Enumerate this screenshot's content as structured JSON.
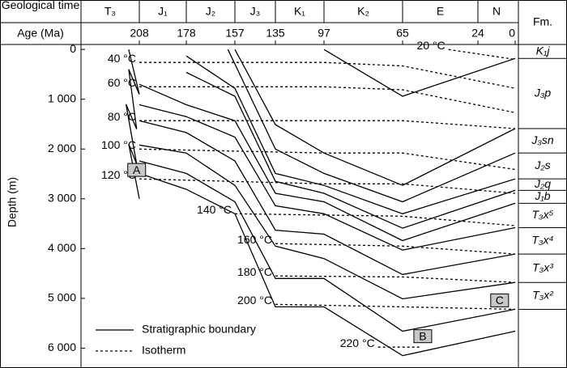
{
  "chart_data": {
    "type": "line",
    "header_time": "Geological time",
    "header_age": "Age (Ma)",
    "header_fm": "Fm.",
    "ylabel": "Depth (m)",
    "periods": [
      "T₃",
      "J₁",
      "J₂",
      "J₃",
      "K₁",
      "K₂",
      "E",
      "N"
    ],
    "xlim": [
      230,
      0
    ],
    "xticks": [
      208,
      178,
      157,
      135,
      97,
      65,
      24,
      0
    ],
    "ylim": [
      -100,
      6350
    ],
    "yticks": [
      0,
      {
        "value": 1000,
        "label": "1 000"
      },
      {
        "value": 2000,
        "label": "2 000"
      },
      {
        "value": 3000,
        "label": "3 000"
      },
      {
        "value": 4000,
        "label": "4 000"
      },
      {
        "value": 5000,
        "label": "5 000"
      },
      {
        "value": 6000,
        "label": "6 000"
      }
    ],
    "formations": [
      "K₁j",
      "J₃p",
      "J₃sn",
      "J₂s",
      "J₂q",
      "J₁b",
      "T₃x⁵",
      "T₃x⁴",
      "T₃x³",
      "T₃x²"
    ],
    "boundaries": {
      "name": "Stratigraphic boundary",
      "color": "#000000",
      "lines": [
        {
          "x": [
            97,
            65,
            0
          ],
          "values": [
            0,
            940,
            180
          ]
        },
        {
          "x": [
            157,
            135,
            97,
            65,
            0
          ],
          "values": [
            0,
            1510,
            2080,
            2730,
            1590
          ]
        },
        {
          "x": [
            160,
            135,
            97,
            65,
            0
          ],
          "values": [
            0,
            2000,
            2490,
            3060,
            2080
          ]
        },
        {
          "x": [
            178,
            157,
            135,
            97,
            65,
            0
          ],
          "values": [
            130,
            780,
            2490,
            2730,
            3300,
            2600
          ]
        },
        {
          "x": [
            178,
            157,
            135,
            97,
            65,
            0
          ],
          "values": [
            460,
            940,
            2650,
            2890,
            3590,
            2830
          ]
        },
        {
          "x": [
            208,
            178,
            157,
            135,
            97,
            65,
            0
          ],
          "values": [
            700,
            1110,
            1430,
            2890,
            3060,
            3840,
            3090
          ]
        },
        {
          "x": [
            208,
            178,
            157,
            135,
            97,
            65,
            0
          ],
          "values": [
            1110,
            1350,
            1760,
            3140,
            3300,
            4030,
            3580
          ]
        },
        {
          "x": [
            208,
            178,
            157,
            135,
            97,
            65,
            0
          ],
          "values": [
            1430,
            1670,
            2240,
            3630,
            3710,
            4520,
            4110
          ]
        },
        {
          "x": [
            208,
            178,
            157,
            135,
            97,
            65,
            0
          ],
          "values": [
            1920,
            2080,
            2730,
            3950,
            4200,
            5010,
            4680
          ]
        },
        {
          "x": [
            208,
            178,
            157,
            135,
            97,
            65,
            0
          ],
          "values": [
            2240,
            2490,
            3060,
            4600,
            4600,
            5660,
            5220
          ]
        },
        {
          "x": [
            208,
            178,
            157,
            135,
            97,
            65,
            0
          ],
          "values": [
            2490,
            2810,
            3300,
            5170,
            5170,
            6150,
            5660
          ]
        },
        {
          "x": [
            212,
            208,
            212,
            209,
            213,
            209,
            212,
            208
          ],
          "values": [
            0,
            900,
            400,
            1600,
            1100,
            2300,
            1900,
            3000
          ]
        }
      ]
    },
    "isotherms": {
      "name": "Isotherm",
      "color": "#000000",
      "lines": [
        {
          "label": "20 °C",
          "x": [
            40,
            0
          ],
          "values": [
            0,
            200
          ]
        },
        {
          "label": "40 °C",
          "x": [
            208,
            97,
            65,
            0
          ],
          "values": [
            260,
            260,
            330,
            780
          ]
        },
        {
          "label": "60 °C",
          "x": [
            208,
            97,
            65,
            0
          ],
          "values": [
            750,
            750,
            810,
            1270
          ]
        },
        {
          "label": "80 °C",
          "x": [
            208,
            97,
            65,
            0
          ],
          "values": [
            1430,
            1430,
            1430,
            1590
          ]
        },
        {
          "label": "100 °C",
          "x": [
            208,
            97,
            65,
            0
          ],
          "values": [
            2000,
            2080,
            2080,
            2410
          ]
        },
        {
          "label": "120 °C",
          "x": [
            208,
            97,
            65,
            0
          ],
          "values": [
            2600,
            2700,
            2700,
            2890
          ]
        },
        {
          "label": "140 °C",
          "x": [
            157,
            65,
            0
          ],
          "values": [
            3300,
            3350,
            3540
          ]
        },
        {
          "label": "160 °C",
          "x": [
            135,
            65,
            0
          ],
          "values": [
            3900,
            3950,
            4110
          ]
        },
        {
          "label": "180 °C",
          "x": [
            135,
            65,
            0
          ],
          "values": [
            4550,
            4570,
            4680
          ]
        },
        {
          "label": "200 °C",
          "x": [
            135,
            65,
            0
          ],
          "values": [
            5120,
            5170,
            5220
          ]
        },
        {
          "label": "220 °C",
          "x": [
            75,
            55
          ],
          "values": [
            5980,
            5980
          ]
        }
      ]
    },
    "markers": [
      {
        "label": "A",
        "x": 209,
        "y": 2420
      },
      {
        "label": "B",
        "x": 54,
        "y": 5760
      },
      {
        "label": "C",
        "x": 10,
        "y": 5040
      }
    ]
  }
}
